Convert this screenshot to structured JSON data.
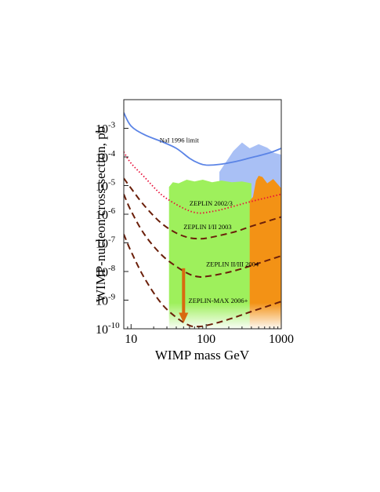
{
  "chart_data": {
    "type": "line",
    "xlabel": "WIMP mass GeV",
    "ylabel": "WIMP-nucleon cross-section, pb",
    "x_scale": "log",
    "y_scale": "log",
    "xlim": [
      8,
      1000
    ],
    "ylim": [
      1e-10,
      0.01
    ],
    "x_ticks": [
      {
        "value": 10,
        "label": "10"
      },
      {
        "value": 100,
        "label": "100"
      },
      {
        "value": 1000,
        "label": "1000"
      }
    ],
    "y_ticks": [
      {
        "value": 0.001,
        "base": "10",
        "exp": "-3"
      },
      {
        "value": 0.0001,
        "base": "10",
        "exp": "-4"
      },
      {
        "value": 1e-05,
        "base": "10",
        "exp": "-5"
      },
      {
        "value": 1e-06,
        "base": "10",
        "exp": "-6"
      },
      {
        "value": 1e-07,
        "base": "10",
        "exp": "-7"
      },
      {
        "value": 1e-08,
        "base": "10",
        "exp": "-8"
      },
      {
        "value": 1e-09,
        "base": "10",
        "exp": "-9"
      },
      {
        "value": 1e-10,
        "base": "10",
        "exp": "-10"
      }
    ],
    "regions": [
      {
        "color": "#a9c0f5",
        "points": [
          [
            150,
            3e-05
          ],
          [
            230,
            0.00016
          ],
          [
            300,
            0.00032
          ],
          [
            380,
            0.0002
          ],
          [
            500,
            0.00028
          ],
          [
            650,
            0.00021
          ],
          [
            800,
            0.00014
          ],
          [
            1000,
            0.00012
          ],
          [
            1000,
            1e-10
          ],
          [
            150,
            1e-10
          ]
        ]
      },
      {
        "color": "#9ef05c",
        "points": [
          [
            32,
            1e-10
          ],
          [
            32,
            9e-06
          ],
          [
            36,
            1.3e-05
          ],
          [
            43,
            1.2e-05
          ],
          [
            55,
            1.6e-05
          ],
          [
            70,
            1.4e-05
          ],
          [
            90,
            1.6e-05
          ],
          [
            120,
            1.3e-05
          ],
          [
            160,
            1.5e-05
          ],
          [
            220,
            1.3e-05
          ],
          [
            300,
            1.4e-05
          ],
          [
            400,
            1.2e-05
          ],
          [
            400,
            1e-10
          ]
        ]
      },
      {
        "color": "#f39215",
        "points": [
          [
            380,
            1e-10
          ],
          [
            380,
            3e-06
          ],
          [
            420,
            4e-06
          ],
          [
            460,
            1.5e-05
          ],
          [
            500,
            2.2e-05
          ],
          [
            560,
            2e-05
          ],
          [
            650,
            1.2e-05
          ],
          [
            780,
            1.7e-05
          ],
          [
            1000,
            8e-06
          ],
          [
            1000,
            1e-10
          ]
        ]
      }
    ],
    "series": [
      {
        "label": "NaI 1996 limit",
        "color": "#5b84e6",
        "style": "solid",
        "points": [
          [
            8,
            0.0035
          ],
          [
            10,
            0.0012
          ],
          [
            15,
            0.0006
          ],
          [
            25,
            0.00035
          ],
          [
            40,
            0.0002
          ],
          [
            60,
            9e-05
          ],
          [
            80,
            6e-05
          ],
          [
            100,
            5.2e-05
          ],
          [
            150,
            5.5e-05
          ],
          [
            250,
            7e-05
          ],
          [
            400,
            9.5e-05
          ],
          [
            700,
            0.00014
          ],
          [
            1000,
            0.0002
          ]
        ]
      },
      {
        "label": "ZEPLIN 2002/3",
        "color": "#e8103a",
        "style": "dotted",
        "points": [
          [
            8,
            0.00015
          ],
          [
            10,
            6e-05
          ],
          [
            15,
            2e-05
          ],
          [
            25,
            5e-06
          ],
          [
            40,
            2.2e-06
          ],
          [
            60,
            1.3e-06
          ],
          [
            80,
            1.1e-06
          ],
          [
            100,
            1.15e-06
          ],
          [
            150,
            1.4e-06
          ],
          [
            250,
            2e-06
          ],
          [
            400,
            2.8e-06
          ],
          [
            700,
            4e-06
          ],
          [
            1000,
            5e-06
          ]
        ]
      },
      {
        "label": "ZEPLIN I/II 2003",
        "color": "#6b1f0a",
        "style": "dashed",
        "points": [
          [
            8,
            1.8e-05
          ],
          [
            10,
            8e-06
          ],
          [
            15,
            2e-06
          ],
          [
            25,
            5e-07
          ],
          [
            40,
            2.2e-07
          ],
          [
            60,
            1.5e-07
          ],
          [
            80,
            1.4e-07
          ],
          [
            100,
            1.45e-07
          ],
          [
            150,
            1.8e-07
          ],
          [
            250,
            2.5e-07
          ],
          [
            400,
            3.8e-07
          ],
          [
            700,
            6e-07
          ],
          [
            1000,
            8e-07
          ]
        ]
      },
      {
        "label": "ZEPLIN II/III 2004",
        "color": "#6b1f0a",
        "style": "dashed",
        "points": [
          [
            8,
            5e-06
          ],
          [
            10,
            1.3e-06
          ],
          [
            15,
            2e-07
          ],
          [
            25,
            4e-08
          ],
          [
            40,
            1.5e-08
          ],
          [
            60,
            8e-09
          ],
          [
            80,
            6.5e-09
          ],
          [
            100,
            6.7e-09
          ],
          [
            150,
            8e-09
          ],
          [
            250,
            1.1e-08
          ],
          [
            400,
            1.6e-08
          ],
          [
            700,
            2.6e-08
          ],
          [
            1000,
            3.5e-08
          ]
        ]
      },
      {
        "label": "ZEPLIN-MAX 2006+",
        "color": "#6b1f0a",
        "style": "dashed",
        "points": [
          [
            8,
            2e-07
          ],
          [
            10,
            5e-08
          ],
          [
            15,
            6e-09
          ],
          [
            25,
            8e-10
          ],
          [
            40,
            2.5e-10
          ],
          [
            60,
            1.3e-10
          ],
          [
            80,
            1.2e-10
          ],
          [
            100,
            1.3e-10
          ],
          [
            150,
            1.7e-10
          ],
          [
            250,
            2.6e-10
          ],
          [
            400,
            4e-10
          ],
          [
            700,
            6.5e-10
          ],
          [
            1000,
            9e-10
          ]
        ]
      }
    ],
    "annotations": [
      {
        "text": "NaI 1996 limit",
        "x": 24,
        "y": 0.00032
      },
      {
        "text": "ZEPLIN 2002/3",
        "x": 60,
        "y": 2e-06
      },
      {
        "text": "ZEPLIN I/II 2003",
        "x": 50,
        "y": 3e-07
      },
      {
        "text": "ZEPLIN II/III 2004",
        "x": 100,
        "y": 1.5e-08
      },
      {
        "text": "ZEPLIN-MAX 2006+",
        "x": 58,
        "y": 8e-10
      }
    ],
    "arrow": {
      "color": "#d86a10",
      "x": 50,
      "y_from": 1.3e-08,
      "y_to": 1.6e-10
    }
  }
}
